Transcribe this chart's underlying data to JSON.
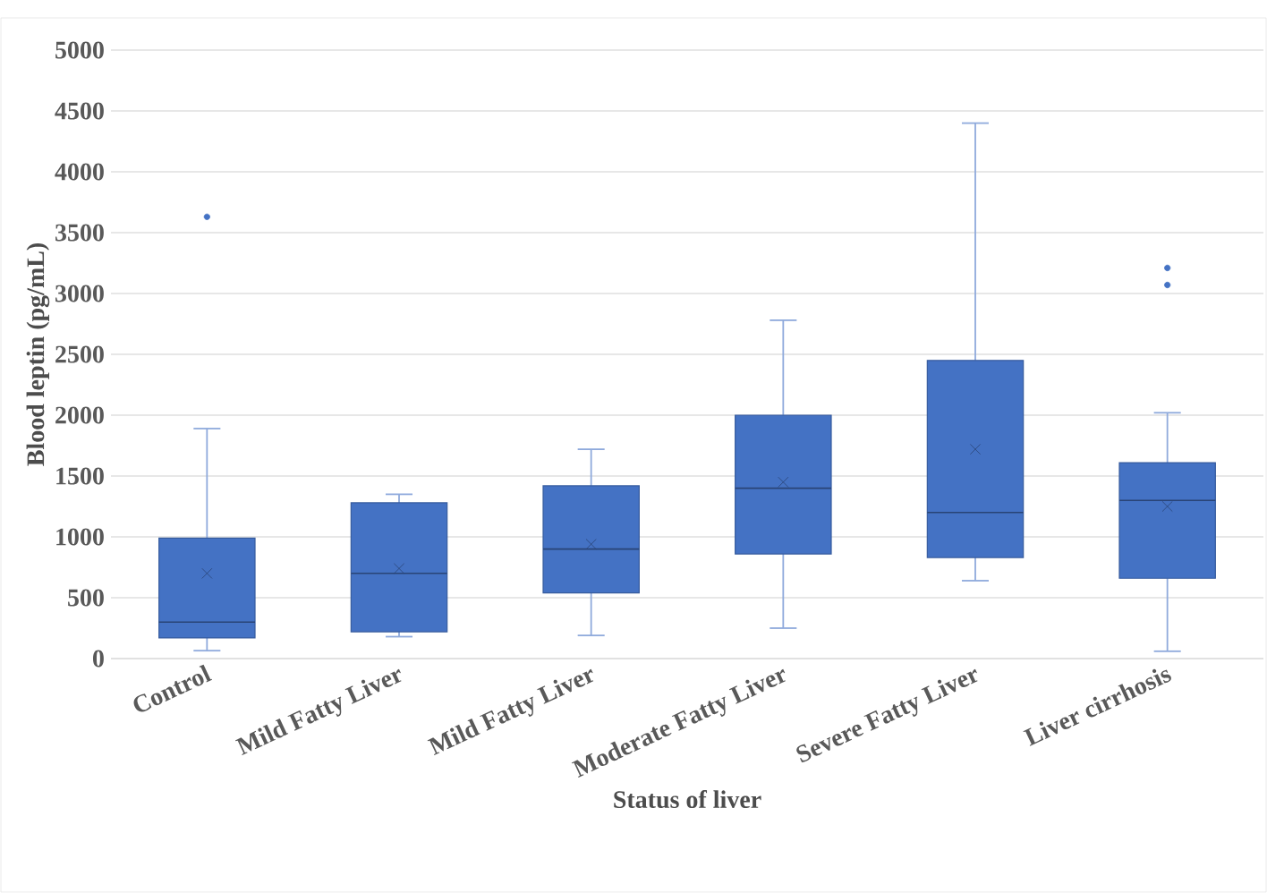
{
  "chart_data": {
    "type": "box",
    "xlabel": "Status of liver",
    "ylabel": "Blood leptin (pg/mL)",
    "categories": [
      "Control",
      "Mild Fatty Liver",
      "Mild Fatty Liver",
      "Moderate Fatty Liver",
      "Severe Fatty Liver",
      "Liver cirrhosis"
    ],
    "series": [
      {
        "color": "#4472c4",
        "boxes": [
          {
            "low": 65,
            "q1": 170,
            "median": 300,
            "q3": 990,
            "high": 1890,
            "mean": 700,
            "outliers": [
              3630
            ]
          },
          {
            "low": 180,
            "q1": 220,
            "median": 700,
            "q3": 1280,
            "high": 1350,
            "mean": 740
          },
          {
            "low": 190,
            "q1": 540,
            "median": 900,
            "q3": 1420,
            "high": 1720,
            "mean": 940
          },
          {
            "low": 250,
            "q1": 860,
            "median": 1400,
            "q3": 2000,
            "high": 2780,
            "mean": 1450
          },
          {
            "low": 640,
            "q1": 830,
            "median": 1200,
            "q3": 2450,
            "high": 4400,
            "mean": 1720
          },
          {
            "low": 60,
            "q1": 660,
            "median": 1300,
            "q3": 1610,
            "high": 2020,
            "mean": 1250,
            "outliers": [
              3070,
              3210
            ]
          }
        ]
      }
    ],
    "ylim": [
      0,
      5000
    ],
    "yticks": [
      0,
      500,
      1000,
      1500,
      2000,
      2500,
      3000,
      3500,
      4000,
      4500,
      5000
    ],
    "grid": "y",
    "marker": "circle"
  }
}
